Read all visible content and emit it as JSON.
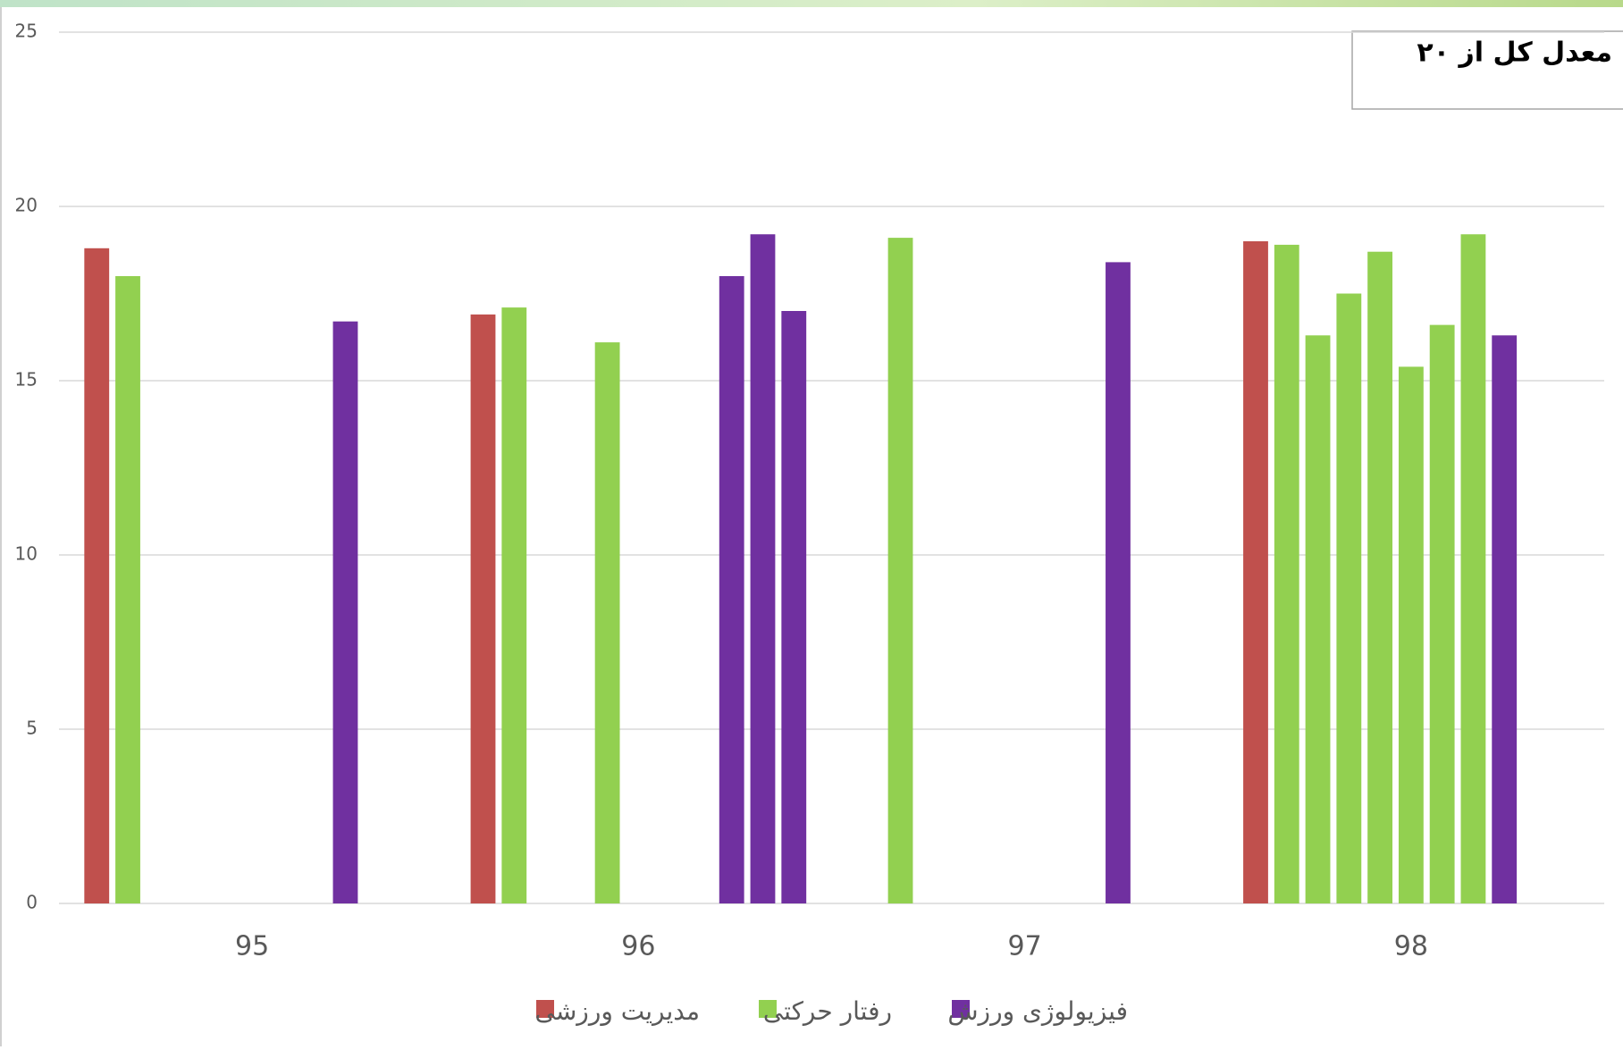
{
  "chart_data": {
    "type": "bar",
    "title": "معدل کل از ۲۰",
    "categories": [
      "95",
      "96",
      "97",
      "98"
    ],
    "series": [
      {
        "name": "مدیریت ورزشی",
        "color": "#c0504d",
        "values": [
          [
            18.8,
            null,
            null,
            null,
            null,
            null,
            null,
            null,
            null,
            null,
            null
          ],
          [
            16.9,
            null,
            null,
            null,
            null,
            null,
            null,
            null,
            null,
            null,
            null
          ],
          [
            null,
            null,
            null,
            null,
            null,
            null,
            null,
            null,
            null,
            null,
            null
          ],
          [
            19.0,
            null,
            null,
            null,
            null,
            null,
            null,
            null,
            null,
            null,
            null
          ]
        ]
      },
      {
        "name": "رفتار حرکتی",
        "color": "#92d050",
        "values": [
          [
            null,
            18.0,
            null,
            null,
            null,
            null,
            null,
            null,
            null,
            null,
            null
          ],
          [
            null,
            17.1,
            null,
            null,
            16.1,
            null,
            null,
            null,
            null,
            null,
            null
          ],
          [
            null,
            19.1,
            null,
            null,
            null,
            null,
            null,
            null,
            null,
            null,
            null
          ],
          [
            null,
            18.9,
            16.3,
            17.5,
            18.7,
            15.4,
            16.6,
            19.2,
            null,
            null,
            null
          ]
        ]
      },
      {
        "name": "فیزیولوژی ورزش",
        "color": "#7030a0",
        "values": [
          [
            null,
            null,
            null,
            null,
            null,
            null,
            null,
            null,
            16.7,
            null,
            null
          ],
          [
            null,
            null,
            null,
            null,
            null,
            null,
            null,
            null,
            18.0,
            19.2,
            17.0
          ],
          [
            null,
            null,
            null,
            null,
            null,
            null,
            null,
            null,
            18.4,
            null,
            null
          ],
          [
            null,
            null,
            null,
            null,
            null,
            null,
            null,
            null,
            16.3,
            null,
            null
          ]
        ]
      }
    ],
    "ylim": [
      0,
      25
    ],
    "yticks": [
      0,
      5,
      10,
      15,
      20,
      25
    ],
    "grid": true
  }
}
